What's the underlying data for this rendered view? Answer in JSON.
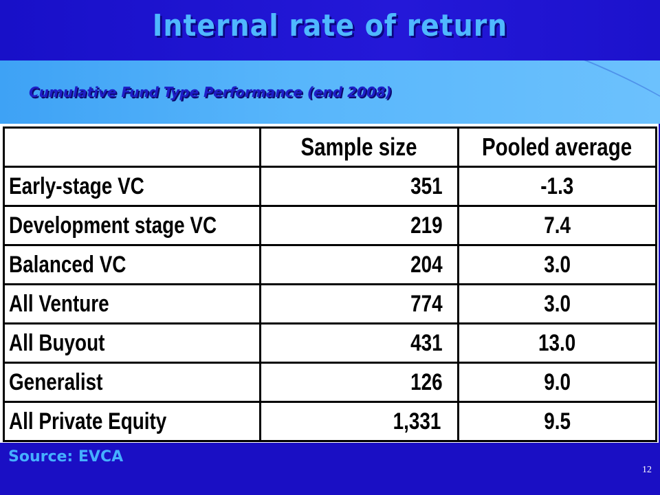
{
  "slide": {
    "title": "Internal rate of return",
    "subtitle": "Cumulative Fund Type Performance (end 2008)",
    "source": "Source: EVCA",
    "slide_number": "12"
  },
  "table": {
    "headers": [
      "",
      "Sample size",
      "Pooled average"
    ],
    "rows": [
      {
        "label": "Early-stage VC",
        "sample_size": "351",
        "pooled_average": "-1.3"
      },
      {
        "label": "Development stage VC",
        "sample_size": "219",
        "pooled_average": "7.4"
      },
      {
        "label": "Balanced VC",
        "sample_size": "204",
        "pooled_average": "3.0"
      },
      {
        "label": "All Venture",
        "sample_size": "774",
        "pooled_average": "3.0"
      },
      {
        "label": "All Buyout",
        "sample_size": "431",
        "pooled_average": "13.0"
      },
      {
        "label": "Generalist",
        "sample_size": "126",
        "pooled_average": "9.0"
      },
      {
        "label": "All Private Equity",
        "sample_size": "1,331",
        "pooled_average": "9.5"
      }
    ]
  }
}
